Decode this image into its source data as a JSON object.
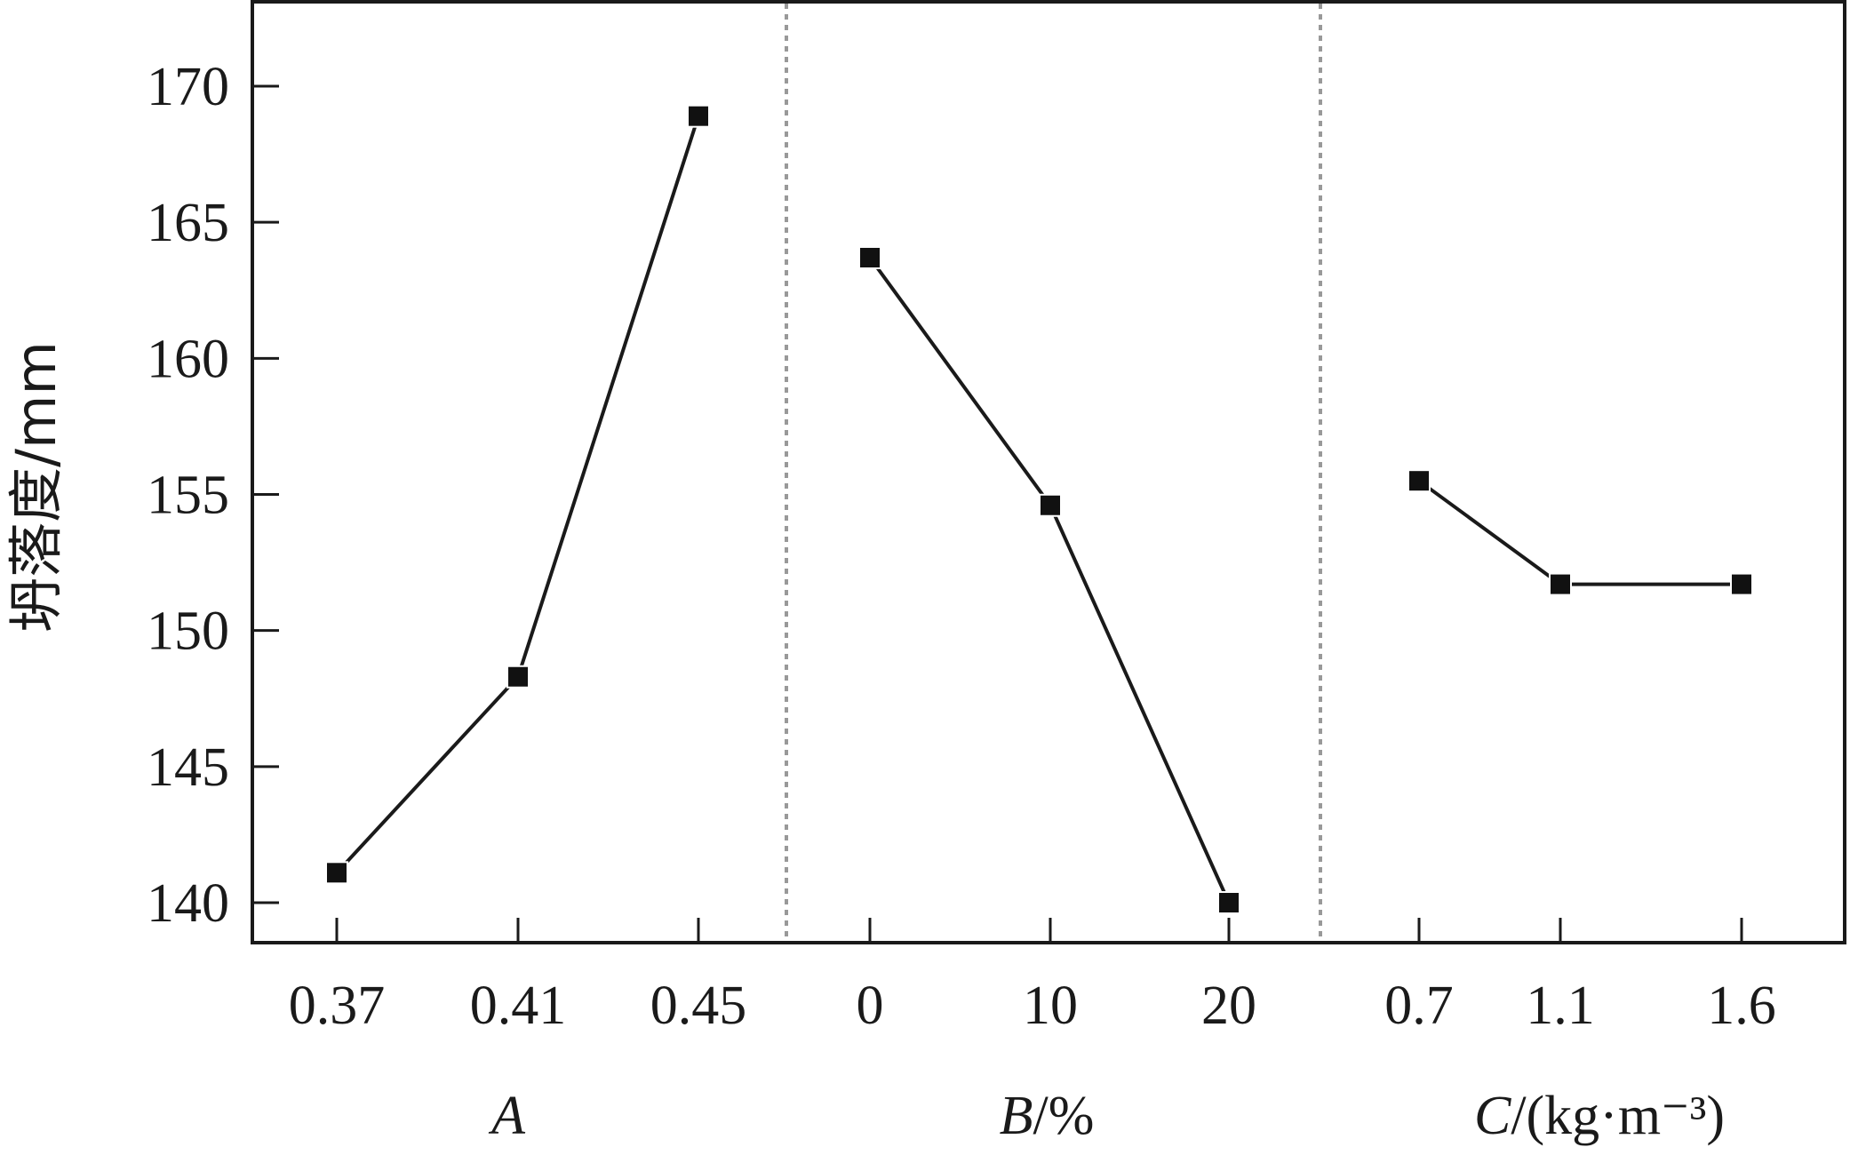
{
  "chart_data": {
    "type": "line",
    "ylabel": "坍落度/mm",
    "ylim": [
      138.5,
      173
    ],
    "yticks": [
      140,
      145,
      150,
      155,
      160,
      165,
      170
    ],
    "grid": false,
    "legend": "none",
    "colors": {
      "line": "#1a1a1a",
      "marker": "#111111",
      "divider": "#999999"
    },
    "panels": [
      {
        "xlabel_italic": "A",
        "xlabel_rest": "",
        "categories": [
          "0.37",
          "0.41",
          "0.45"
        ],
        "values": [
          141.1,
          148.3,
          168.9
        ]
      },
      {
        "xlabel_italic": "B",
        "xlabel_rest": "/%",
        "categories": [
          "0",
          "10",
          "20"
        ],
        "values": [
          163.7,
          154.6,
          140.0
        ]
      },
      {
        "xlabel_italic": "C",
        "xlabel_rest": "/(kg·m⁻³)",
        "categories": [
          "0.7",
          "1.1",
          "1.6"
        ],
        "values": [
          155.5,
          151.7,
          151.7
        ]
      }
    ]
  }
}
